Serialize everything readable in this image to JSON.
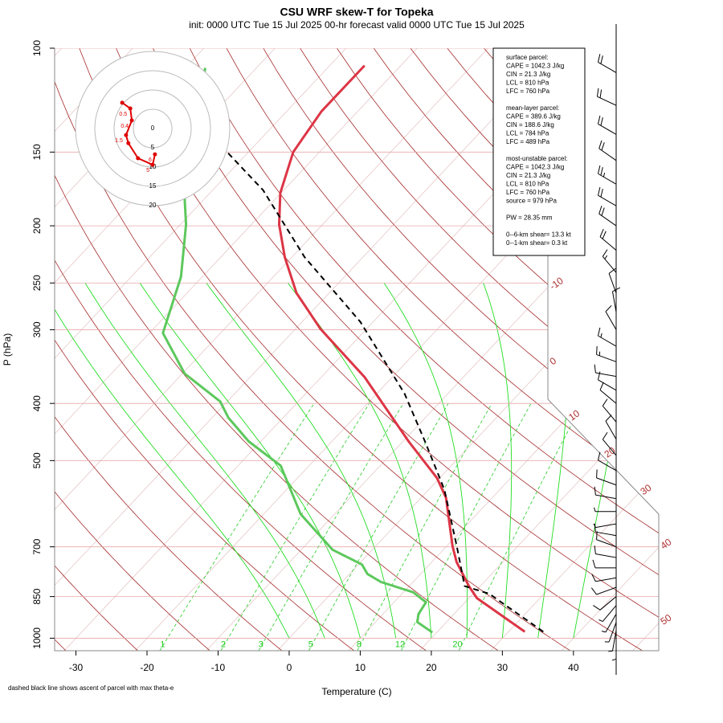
{
  "chart_data": {
    "type": "skewt",
    "title": "CSU WRF skew-T for Topeka",
    "subtitle": "init: 0000 UTC Tue 15 Jul 2025    00-hr forecast valid 0000 UTC Tue 15 Jul 2025",
    "x_label": "Temperature (C)",
    "y_label": "P (hPa)",
    "footnote": "dashed black line shows ascent of parcel with max theta-e",
    "log_y": true,
    "xlim": [
      -33,
      52
    ],
    "ylim": [
      1050,
      100
    ],
    "xticks": [
      -30,
      -20,
      -10,
      0,
      10,
      20,
      30,
      40
    ],
    "yticks": [
      100,
      150,
      200,
      250,
      300,
      400,
      500,
      700,
      850,
      1000
    ],
    "isotherm_labels": [
      -10,
      0,
      10,
      20,
      30,
      40,
      50
    ],
    "mixing_ratio_labels": [
      1,
      2,
      3,
      5,
      8,
      12,
      20
    ],
    "series": [
      {
        "color": "#dc3545",
        "style": "solid",
        "pressure": [
          975,
          855,
          816,
          743,
          698,
          578,
          535,
          464,
          361,
          299,
          260,
          226,
          199,
          176,
          150,
          128,
          107
        ],
        "values": [
          32.3,
          21.1,
          18.4,
          13.5,
          10.8,
          3.5,
          -0.4,
          -9.2,
          -23.9,
          -36.5,
          -44.6,
          -51,
          -56.1,
          -60.1,
          -63.7,
          -65.1,
          -65.1
        ]
      },
      {
        "color": "#5cc85c",
        "style": "solid",
        "pressure": [
          978,
          939,
          910,
          869,
          836,
          803,
          778,
          750,
          708,
          616,
          510,
          464,
          423,
          397,
          356,
          304,
          244,
          199,
          176,
          108
        ],
        "values": [
          19.4,
          15.9,
          15.0,
          14.5,
          11.4,
          5.5,
          2.5,
          0.5,
          -5.6,
          -14.8,
          -24,
          -31.7,
          -37.7,
          -41,
          -49.7,
          -58.1,
          -63,
          -69.2,
          -73.6,
          -87.2
        ]
      },
      {
        "color": "#000000",
        "style": "dashed",
        "pressure": [
          975,
          841,
          816,
          698,
          560,
          464,
          385,
          291,
          226,
          174,
          150
        ],
        "values": [
          34.9,
          22.3,
          17.8,
          11.4,
          2.2,
          -6.9,
          -16.1,
          -31.8,
          -48.2,
          -62.9,
          -73
        ]
      }
    ],
    "info_box": [
      [
        "surface parcel:",
        "CAPE = 1042.3 J/kg",
        "CIN = 21.3 J/kg",
        "LCL = 810 hPa",
        "LFC = 760 hPa"
      ],
      [
        "mean-layer parcel:",
        "CAPE = 389.6 J/kg",
        "CIN = 188.6 J/kg",
        "LCL = 784 hPa",
        "LFC = 489 hPa"
      ],
      [
        "most-unstable parcel:",
        "CAPE = 1042.3 J/kg",
        "CIN = 21.3 J/kg",
        "LCL = 810 hPa",
        "LFC = 760 hPa",
        "source = 979 hPa"
      ],
      [
        "PW =  28.35 mm"
      ],
      [
        "0--6-km shear= 13.3 kt",
        "0--1-km shear= 0.3 kt"
      ]
    ],
    "hodograph": {
      "color": "#e00000",
      "rings": [
        0,
        5,
        10,
        15,
        20
      ],
      "u": [
        -7.9,
        -5.8,
        -5.4,
        -6.9,
        -6.3,
        -3.8,
        0,
        0.6
      ],
      "v": [
        6.7,
        5.2,
        2.1,
        -1.7,
        -3.8,
        -7.7,
        -9.4,
        -6.7
      ],
      "labels": [
        null,
        "0.5",
        "0.4",
        "1.5",
        null,
        null,
        "5",
        "6"
      ]
    },
    "wind_barbs": {
      "pressure": [
        110,
        125,
        140,
        155,
        170,
        185,
        200,
        220,
        240,
        260,
        280,
        300,
        320,
        340,
        360,
        380,
        400,
        430,
        460,
        490,
        520,
        550,
        580,
        610,
        640,
        670,
        700,
        730,
        760,
        790,
        820,
        850,
        880,
        910,
        940,
        970,
        1000
      ],
      "direction": [
        300,
        295,
        300,
        305,
        300,
        300,
        305,
        310,
        320,
        340,
        350,
        330,
        300,
        290,
        280,
        300,
        310,
        320,
        330,
        320,
        300,
        290,
        280,
        270,
        260,
        280,
        290,
        280,
        270,
        260,
        250,
        230,
        220,
        210,
        200,
        190,
        180
      ],
      "speed": [
        20,
        20,
        20,
        20,
        25,
        20,
        20,
        20,
        15,
        10,
        10,
        10,
        15,
        15,
        10,
        10,
        10,
        10,
        10,
        10,
        10,
        10,
        10,
        5,
        5,
        10,
        10,
        10,
        10,
        10,
        10,
        10,
        5,
        5,
        5,
        5,
        5
      ]
    }
  }
}
